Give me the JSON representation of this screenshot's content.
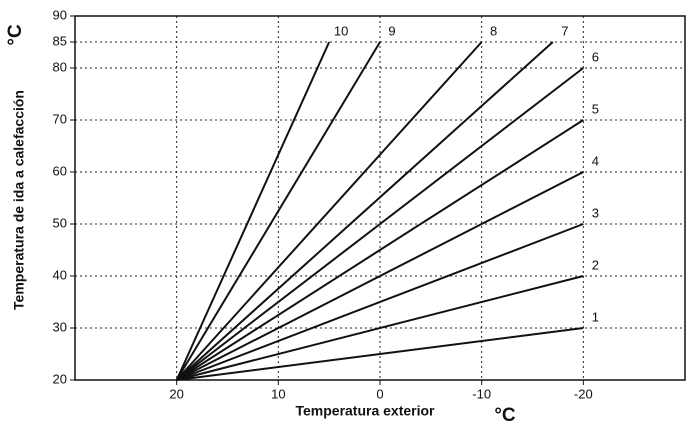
{
  "chart_data": {
    "type": "line",
    "y_label": "Temperatura de ida a calefacción",
    "x_label": "Temperatura exterior",
    "y_unit": "°C",
    "x_unit": "°C",
    "xlim": [
      30,
      -30
    ],
    "xticks": [
      20,
      10,
      0,
      -10,
      -20
    ],
    "ylim": [
      20,
      90
    ],
    "yticks": [
      20,
      30,
      40,
      50,
      60,
      70,
      80,
      85,
      90
    ],
    "grid": true,
    "color": "#111111",
    "series": [
      {
        "name": "1",
        "x": [
          20,
          -20
        ],
        "values": [
          20,
          30
        ]
      },
      {
        "name": "2",
        "x": [
          20,
          -20
        ],
        "values": [
          20,
          40
        ]
      },
      {
        "name": "3",
        "x": [
          20,
          -20
        ],
        "values": [
          20,
          50
        ]
      },
      {
        "name": "4",
        "x": [
          20,
          -20
        ],
        "values": [
          20,
          60
        ]
      },
      {
        "name": "5",
        "x": [
          20,
          -20
        ],
        "values": [
          20,
          70
        ]
      },
      {
        "name": "6",
        "x": [
          20,
          -20
        ],
        "values": [
          20,
          80
        ]
      },
      {
        "name": "7",
        "x": [
          20,
          -17
        ],
        "values": [
          20,
          85
        ]
      },
      {
        "name": "8",
        "x": [
          20,
          -10
        ],
        "values": [
          20,
          85
        ]
      },
      {
        "name": "9",
        "x": [
          20,
          0
        ],
        "values": [
          20,
          85
        ]
      },
      {
        "name": "10",
        "x": [
          20,
          5
        ],
        "values": [
          20,
          85
        ]
      }
    ]
  }
}
